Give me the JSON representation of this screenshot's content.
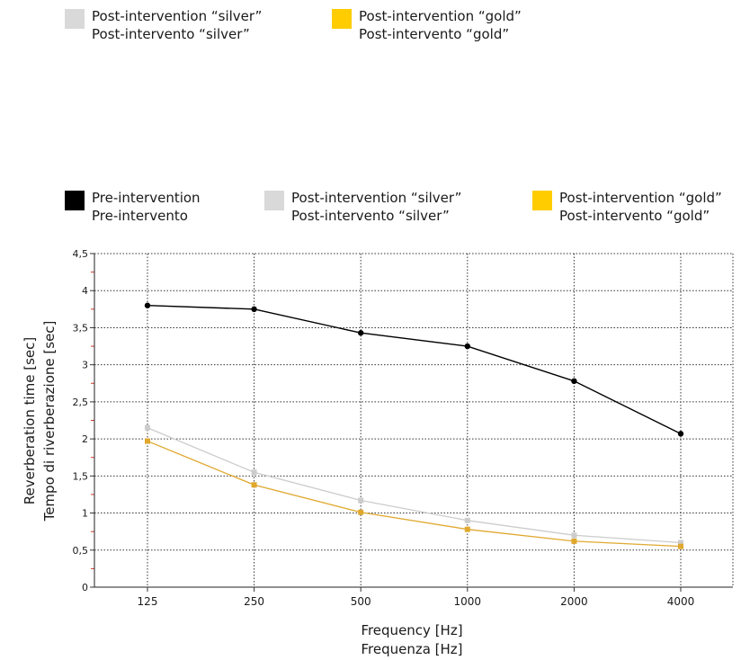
{
  "top_legend": [
    {
      "label_en": "Post-intervention “silver”",
      "label_it": "Post-intervento “silver”",
      "color": "#d9d9d9"
    },
    {
      "label_en": "Post-intervention “gold”",
      "label_it": "Post-intervento “gold”",
      "color": "#ffcc00"
    }
  ],
  "chart_legend": [
    {
      "label_en": "Pre-intervention",
      "label_it": "Pre-intervento",
      "color": "#000000"
    },
    {
      "label_en": "Post-intervention “silver”",
      "label_it": "Post-intervento “silver”",
      "color": "#d9d9d9"
    },
    {
      "label_en": "Post-intervention “gold”",
      "label_it": "Post-intervento “gold”",
      "color": "#ffcc00"
    }
  ],
  "chart_data": {
    "type": "line",
    "categories": [
      "125",
      "250",
      "500",
      "1000",
      "2000",
      "4000"
    ],
    "series": [
      {
        "name": "Pre-intervention",
        "color": "#000000",
        "values": [
          3.8,
          3.75,
          3.43,
          3.25,
          2.78,
          2.07
        ]
      },
      {
        "name": "Post-intervention “silver”",
        "color": "#cccccc",
        "values": [
          2.15,
          1.55,
          1.17,
          0.9,
          0.7,
          0.6
        ]
      },
      {
        "name": "Post-intervention “gold”",
        "color": "#e0a82e",
        "values": [
          1.97,
          1.38,
          1.01,
          0.78,
          0.62,
          0.55
        ]
      }
    ],
    "yticks": [
      "0",
      "0,5",
      "1",
      "1,5",
      "2",
      "2,5",
      "3",
      "3,5",
      "4",
      "4,5"
    ],
    "ylim": [
      0,
      4.5
    ],
    "xlabel_en": "Frequency [Hz]",
    "xlabel_it": "Frequenza [Hz]",
    "ylabel_en": "Reverberation time [sec]",
    "ylabel_it": "Tempo di riverberazione [sec]",
    "grid": true,
    "legend_position": "top"
  }
}
